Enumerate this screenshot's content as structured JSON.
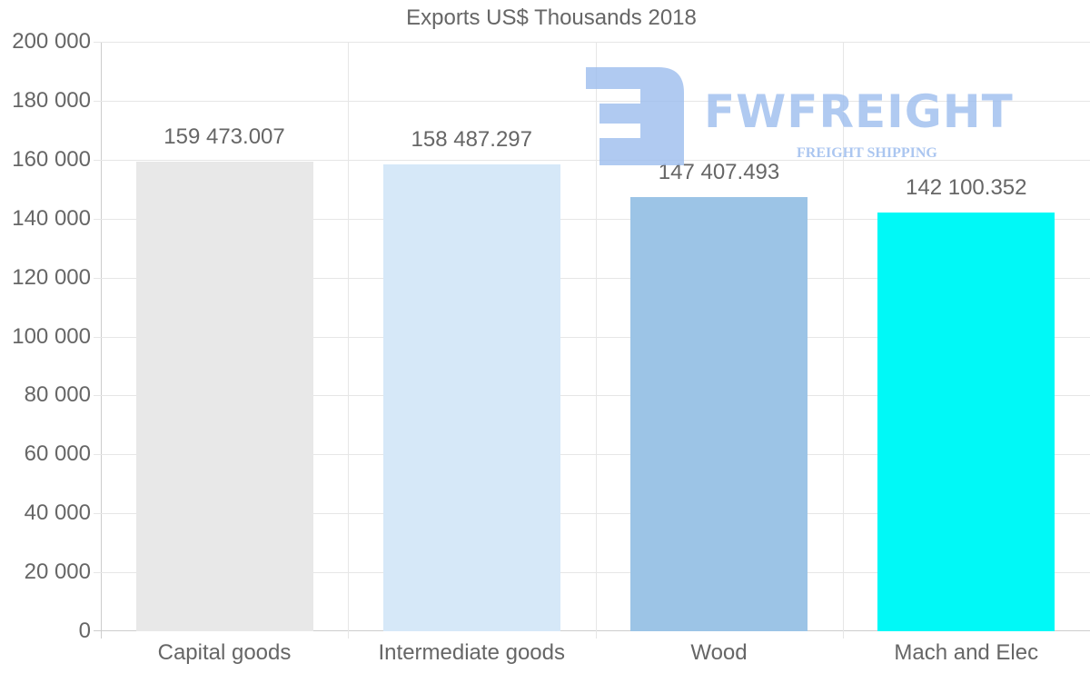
{
  "chart_data": {
    "type": "bar",
    "title": "Exports US$ Thousands 2018",
    "categories": [
      "Capital goods",
      "Intermediate goods",
      "Wood",
      "Mach and Elec"
    ],
    "values": [
      159473.007,
      158487.297,
      147407.493,
      142100.352
    ],
    "value_labels": [
      "159 473.007",
      "158 487.297",
      "147 407.493",
      "142 100.352"
    ],
    "colors": [
      "#e8e8e8",
      "#d6e8f8",
      "#9cc4e6",
      "#00f9f7"
    ],
    "xlabel": "",
    "ylabel": "",
    "ylim": [
      0,
      200000
    ],
    "yticks": [
      "200 000",
      "180 000",
      "160 000",
      "140 000",
      "120 000",
      "100 000",
      "80 000",
      "60 000",
      "40 000",
      "20 000",
      "0"
    ],
    "grid": true,
    "legend": "none"
  },
  "watermark": {
    "brand": "FWFREIGHT",
    "tagline": "FREIGHT SHIPPING"
  }
}
